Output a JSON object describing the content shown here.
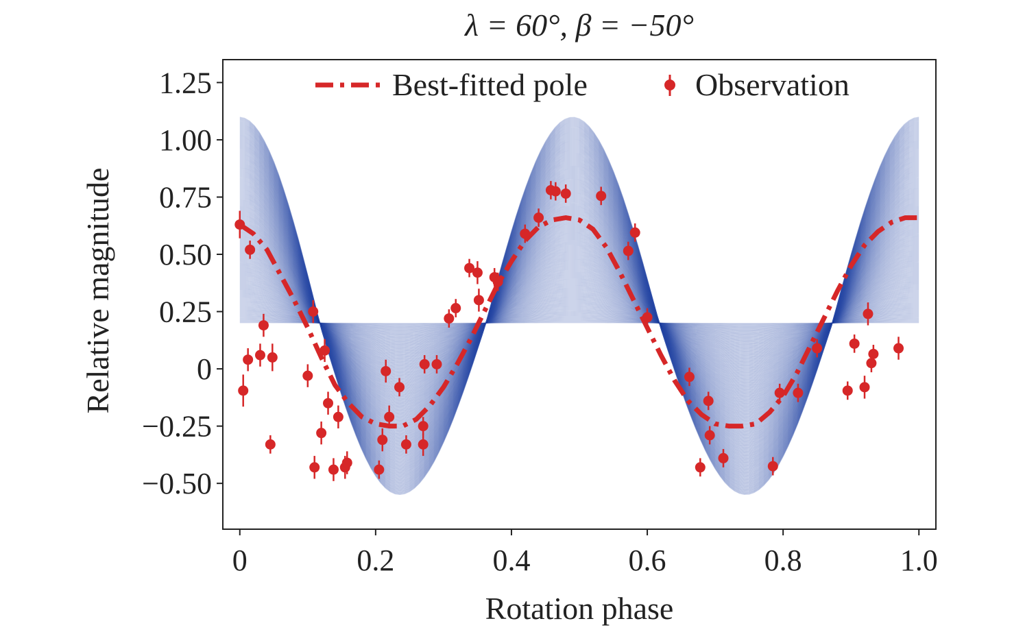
{
  "chart_data": {
    "type": "line",
    "title": "λ = 60°, β = −50°",
    "xlabel": "Rotation phase",
    "ylabel": "Relative magnitude",
    "xlim": [
      -0.025,
      1.025
    ],
    "ylim": [
      -0.7,
      1.35
    ],
    "xticks": [
      0,
      0.2,
      0.4,
      0.6,
      0.8,
      1.0
    ],
    "xtick_labels": [
      "0",
      "0.2",
      "0.4",
      "0.6",
      "0.8",
      "1.0"
    ],
    "yticks": [
      1.25,
      1.0,
      0.75,
      0.5,
      0.25,
      0,
      -0.25,
      -0.5
    ],
    "ytick_labels": [
      "1.25",
      "1.00",
      "0.75",
      "0.50",
      "0.25",
      "0",
      "−0.25",
      "−0.50"
    ],
    "grid": false,
    "legend_position": "top",
    "legend": [
      {
        "label": "Best-fitted pole",
        "style": "dash-dot line"
      },
      {
        "label": "Observation",
        "style": "marker with error bar"
      }
    ],
    "colors": {
      "model_band": "#2e4ca8",
      "best_fit": "#d62728",
      "observation": "#d62728",
      "axes": "#222222"
    },
    "model_band": {
      "description_count": 300,
      "x_range": [
        0,
        1
      ],
      "center_level": 0.2,
      "max_envelope_peak": 1.1,
      "min_envelope_trough": -0.55,
      "peak_phases": [
        0.0,
        0.49,
        1.0
      ],
      "trough_phases": [
        0.235,
        0.745
      ]
    },
    "series": [
      {
        "name": "Best-fitted pole",
        "x": [
          0.0,
          0.02,
          0.04,
          0.06,
          0.08,
          0.1,
          0.12,
          0.14,
          0.16,
          0.18,
          0.2,
          0.22,
          0.24,
          0.26,
          0.28,
          0.3,
          0.32,
          0.34,
          0.36,
          0.38,
          0.4,
          0.42,
          0.44,
          0.46,
          0.48,
          0.5,
          0.52,
          0.54,
          0.56,
          0.58,
          0.6,
          0.62,
          0.64,
          0.66,
          0.68,
          0.7,
          0.72,
          0.74,
          0.76,
          0.78,
          0.8,
          0.82,
          0.84,
          0.86,
          0.88,
          0.9,
          0.92,
          0.94,
          0.96,
          0.98,
          1.0
        ],
        "y": [
          0.63,
          0.59,
          0.52,
          0.41,
          0.3,
          0.18,
          0.05,
          -0.07,
          -0.15,
          -0.21,
          -0.24,
          -0.25,
          -0.25,
          -0.22,
          -0.16,
          -0.08,
          0.02,
          0.13,
          0.25,
          0.37,
          0.47,
          0.56,
          0.62,
          0.65,
          0.66,
          0.65,
          0.61,
          0.53,
          0.42,
          0.3,
          0.18,
          0.06,
          -0.05,
          -0.14,
          -0.2,
          -0.24,
          -0.25,
          -0.25,
          -0.24,
          -0.19,
          -0.12,
          -0.02,
          0.1,
          0.22,
          0.34,
          0.45,
          0.54,
          0.6,
          0.64,
          0.66,
          0.66
        ]
      },
      {
        "name": "Observation",
        "x": [
          0.0,
          0.005,
          0.012,
          0.015,
          0.03,
          0.035,
          0.045,
          0.048,
          0.1,
          0.108,
          0.11,
          0.12,
          0.125,
          0.13,
          0.138,
          0.145,
          0.155,
          0.158,
          0.205,
          0.21,
          0.215,
          0.22,
          0.235,
          0.245,
          0.27,
          0.27,
          0.272,
          0.29,
          0.308,
          0.318,
          0.338,
          0.35,
          0.352,
          0.375,
          0.38,
          0.42,
          0.44,
          0.458,
          0.465,
          0.48,
          0.532,
          0.572,
          0.582,
          0.6,
          0.662,
          0.678,
          0.69,
          0.692,
          0.712,
          0.785,
          0.795,
          0.822,
          0.85,
          0.895,
          0.905,
          0.92,
          0.925,
          0.93,
          0.933,
          0.97
        ],
        "y": [
          0.63,
          -0.095,
          0.04,
          0.52,
          0.06,
          0.19,
          -0.33,
          0.05,
          -0.03,
          0.25,
          -0.43,
          -0.28,
          0.08,
          -0.15,
          -0.44,
          -0.21,
          -0.43,
          -0.41,
          -0.44,
          -0.31,
          -0.01,
          -0.21,
          -0.08,
          -0.33,
          -0.25,
          -0.33,
          0.02,
          0.02,
          0.22,
          0.265,
          0.44,
          0.42,
          0.3,
          0.4,
          0.38,
          0.59,
          0.66,
          0.78,
          0.775,
          0.765,
          0.755,
          0.515,
          0.595,
          0.225,
          -0.035,
          -0.43,
          -0.14,
          -0.29,
          -0.39,
          -0.425,
          -0.105,
          -0.105,
          0.09,
          -0.095,
          0.11,
          -0.08,
          0.24,
          0.025,
          0.065,
          0.09
        ],
        "error": [
          0.06,
          0.07,
          0.05,
          0.04,
          0.05,
          0.05,
          0.04,
          0.06,
          0.05,
          0.05,
          0.05,
          0.05,
          0.05,
          0.05,
          0.05,
          0.05,
          0.05,
          0.05,
          0.04,
          0.05,
          0.05,
          0.05,
          0.04,
          0.04,
          0.04,
          0.05,
          0.04,
          0.04,
          0.04,
          0.04,
          0.04,
          0.05,
          0.05,
          0.04,
          0.04,
          0.04,
          0.04,
          0.04,
          0.04,
          0.04,
          0.04,
          0.04,
          0.04,
          0.04,
          0.04,
          0.04,
          0.04,
          0.04,
          0.04,
          0.04,
          0.04,
          0.04,
          0.04,
          0.04,
          0.04,
          0.05,
          0.05,
          0.04,
          0.04,
          0.05
        ]
      }
    ]
  }
}
